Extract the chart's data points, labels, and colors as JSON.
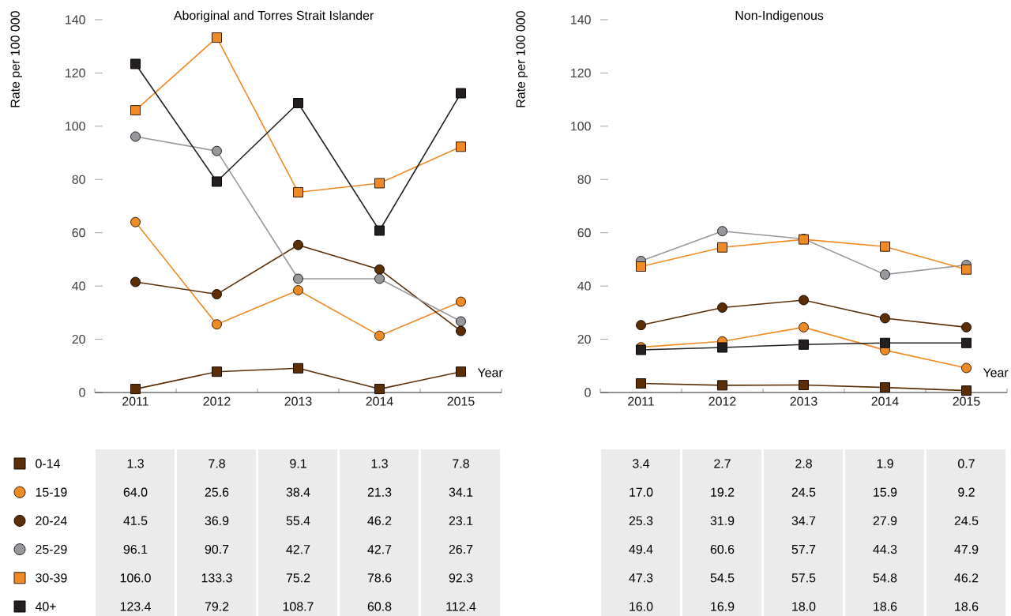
{
  "chart_data": [
    {
      "type": "line",
      "title": "Aboriginal and Torres Strait Islander",
      "xlabel": "Year",
      "ylabel": "Rate per 100 000",
      "categories": [
        "2011",
        "2012",
        "2013",
        "2014",
        "2015"
      ],
      "ylim": [
        0,
        140
      ],
      "yticks": [
        0,
        20,
        40,
        60,
        80,
        100,
        120,
        140
      ],
      "legend": "bottom",
      "series": [
        {
          "name": "0-14",
          "color": "#5c2e06",
          "marker": "square",
          "values": [
            1.3,
            7.8,
            9.1,
            1.3,
            7.8
          ],
          "value_labels": [
            "1.3",
            "7.8",
            "9.1",
            "1.3",
            "7.8"
          ]
        },
        {
          "name": "15-19",
          "color": "#f08a24",
          "marker": "circle",
          "values": [
            64.0,
            25.6,
            38.4,
            21.3,
            34.1
          ],
          "value_labels": [
            "64.0",
            "25.6",
            "38.4",
            "21.3",
            "34.1"
          ]
        },
        {
          "name": "20-24",
          "color": "#5c2e06",
          "marker": "circle",
          "values": [
            41.5,
            36.9,
            55.4,
            46.2,
            23.1
          ],
          "value_labels": [
            "41.5",
            "36.9",
            "55.4",
            "46.2",
            "23.1"
          ]
        },
        {
          "name": "25-29",
          "color": "#98989c",
          "marker": "circle",
          "values": [
            96.1,
            90.7,
            42.7,
            42.7,
            26.7
          ],
          "value_labels": [
            "96.1",
            "90.7",
            "42.7",
            "42.7",
            "26.7"
          ]
        },
        {
          "name": "30-39",
          "color": "#f08a24",
          "marker": "square",
          "values": [
            106.0,
            133.3,
            75.2,
            78.6,
            92.3
          ],
          "value_labels": [
            "106.0",
            "133.3",
            "75.2",
            "78.6",
            "92.3"
          ]
        },
        {
          "name": "40+",
          "color": "#231f20",
          "marker": "square",
          "values": [
            123.4,
            79.2,
            108.7,
            60.8,
            112.4
          ],
          "value_labels": [
            "123.4",
            "79.2",
            "108.7",
            "60.8",
            "112.4"
          ]
        }
      ]
    },
    {
      "type": "line",
      "title": "Non-Indigenous",
      "xlabel": "Year",
      "ylabel": "Rate per 100 000",
      "categories": [
        "2011",
        "2012",
        "2013",
        "2014",
        "2015"
      ],
      "ylim": [
        0,
        140
      ],
      "yticks": [
        0,
        20,
        40,
        60,
        80,
        100,
        120,
        140
      ],
      "series": [
        {
          "color": "#5c2e06",
          "marker": "square",
          "values": [
            3.4,
            2.7,
            2.8,
            1.9,
            0.7
          ],
          "value_labels": [
            "3.4",
            "2.7",
            "2.8",
            "1.9",
            "0.7"
          ]
        },
        {
          "color": "#f08a24",
          "marker": "circle",
          "values": [
            17.0,
            19.2,
            24.5,
            15.9,
            9.2
          ],
          "value_labels": [
            "17.0",
            "19.2",
            "24.5",
            "15.9",
            "9.2"
          ]
        },
        {
          "color": "#5c2e06",
          "marker": "circle",
          "values": [
            25.3,
            31.9,
            34.7,
            27.9,
            24.5
          ],
          "value_labels": [
            "25.3",
            "31.9",
            "34.7",
            "27.9",
            "24.5"
          ]
        },
        {
          "color": "#98989c",
          "marker": "circle",
          "values": [
            49.4,
            60.6,
            57.7,
            44.3,
            47.9
          ],
          "value_labels": [
            "49.4",
            "60.6",
            "57.7",
            "44.3",
            "47.9"
          ]
        },
        {
          "color": "#f08a24",
          "marker": "square",
          "values": [
            47.3,
            54.5,
            57.5,
            54.8,
            46.2
          ],
          "value_labels": [
            "47.3",
            "54.5",
            "57.5",
            "54.8",
            "46.2"
          ]
        },
        {
          "color": "#231f20",
          "marker": "square",
          "values": [
            16.0,
            16.9,
            18.0,
            18.6,
            18.6
          ],
          "value_labels": [
            "16.0",
            "16.9",
            "18.0",
            "18.6",
            "18.6"
          ]
        }
      ]
    }
  ]
}
